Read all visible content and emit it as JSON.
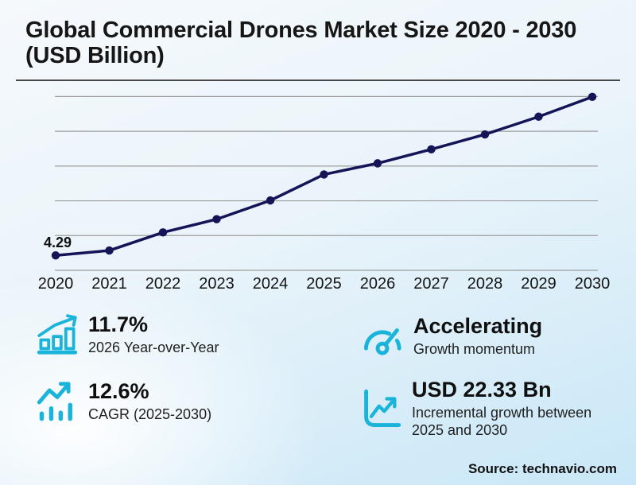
{
  "title": "Global Commercial Drones Market Size 2020 - 2030 (USD Billion)",
  "source": "Source: technavio.com",
  "colors": {
    "accent_cyan": "#1ab3d9",
    "line_navy": "#141457",
    "grid_gray": "#9d9d9d",
    "axis_text": "#141414"
  },
  "chart_data": {
    "type": "line",
    "title": "Global Commercial Drones Market Size 2020 - 2030 (USD Billion)",
    "unit": "USD Billion",
    "x": [
      2020,
      2021,
      2022,
      2023,
      2024,
      2025,
      2026,
      2027,
      2028,
      2029,
      2030
    ],
    "values": [
      4.29,
      5.7,
      10.9,
      14.7,
      20.1,
      27.57,
      30.79,
      34.8,
      39.1,
      44.2,
      49.9
    ],
    "first_point_label": "4.29",
    "ylim": [
      0,
      55
    ],
    "gridline_values": [
      0,
      10,
      20,
      30,
      40,
      50
    ],
    "grid": "horizontal-only",
    "legend": "none",
    "marker": "circle"
  },
  "stats": [
    {
      "value": "11.7%",
      "label": "2026 Year-over-Year",
      "icon": "growth-bars-icon"
    },
    {
      "value": "Accelerating",
      "label": "Growth momentum",
      "icon": "speedometer-icon"
    },
    {
      "value": "12.6%",
      "label": "CAGR (2025-2030)",
      "icon": "trend-arrow-bars-icon"
    },
    {
      "value": "USD 22.33 Bn",
      "label": "Incremental growth between 2025 and 2030",
      "icon": "incremental-growth-chart-icon"
    }
  ]
}
